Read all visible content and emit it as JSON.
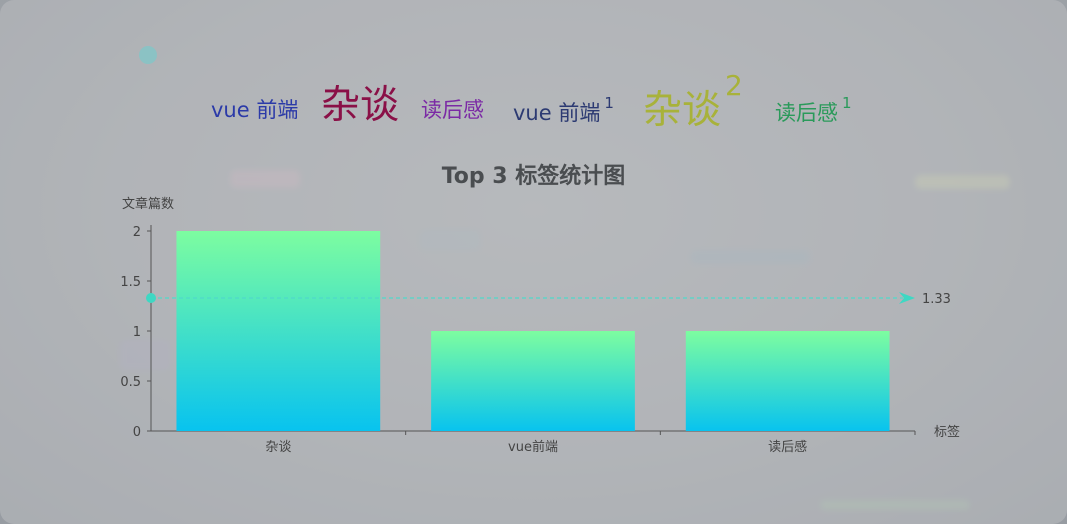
{
  "tag_cloud": [
    {
      "label": "vue 前端",
      "count": "",
      "color": "#2b3aa8"
    },
    {
      "label": "杂谈",
      "count": "",
      "color": "#8a1047"
    },
    {
      "label": "读后感",
      "count": "",
      "color": "#7b2aa5"
    },
    {
      "label": "vue 前端",
      "count": "1",
      "color": "#2c3a72"
    },
    {
      "label": "杂谈",
      "count": "2",
      "color": "#a8b23a"
    },
    {
      "label": "读后感",
      "count": "1",
      "color": "#2a9a5a"
    }
  ],
  "chart_data": {
    "type": "bar",
    "title": "Top 3 标签统计图",
    "xlabel": "标签",
    "ylabel": "文章篇数",
    "categories": [
      "杂谈",
      "vue前端",
      "读后感"
    ],
    "values": [
      2,
      1,
      1
    ],
    "ylim": [
      0,
      2
    ],
    "yticks": [
      "0",
      "0.5",
      "1",
      "1.5",
      "2"
    ],
    "average_line": {
      "value": 1.33,
      "label": "1.33"
    },
    "bar_gradient": {
      "top": "#7dfda0",
      "bottom": "#08c3ef"
    },
    "grid": false,
    "legend": "none"
  }
}
